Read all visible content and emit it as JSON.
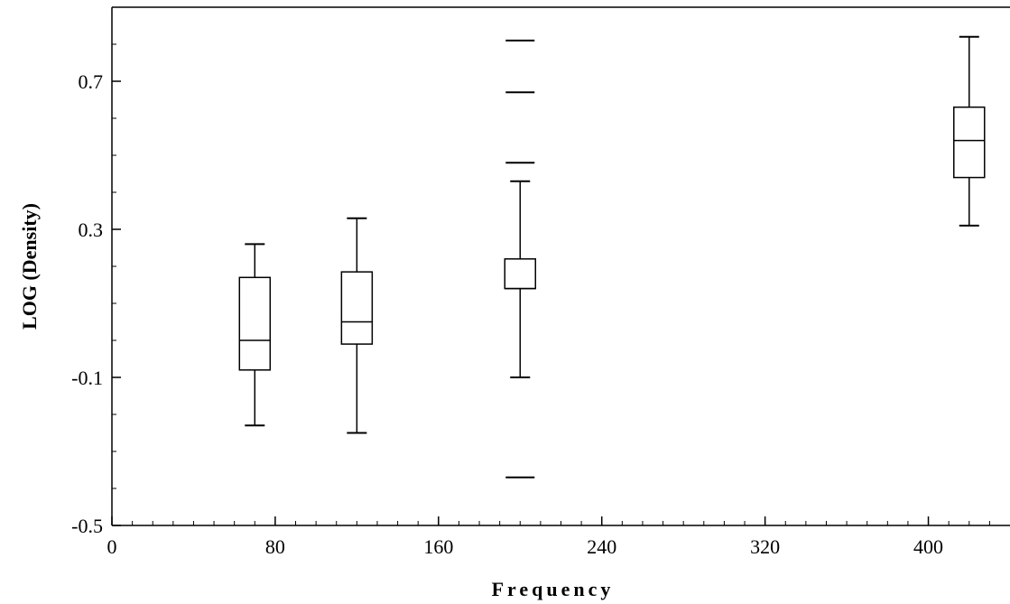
{
  "chart_data": {
    "type": "boxplot",
    "title": "",
    "xlabel": "Frequency",
    "ylabel": "LOG (Density)",
    "xlim": [
      0,
      440
    ],
    "ylim": [
      -0.5,
      0.9
    ],
    "x_ticks": [
      {
        "value": 0,
        "label": "0"
      },
      {
        "value": 80,
        "label": "80"
      },
      {
        "value": 160,
        "label": "160"
      },
      {
        "value": 240,
        "label": "240"
      },
      {
        "value": 320,
        "label": "320"
      },
      {
        "value": 400,
        "label": "400"
      }
    ],
    "y_ticks": [
      {
        "value": -0.5,
        "label": "-0.5"
      },
      {
        "value": -0.1,
        "label": "-0.1"
      },
      {
        "value": 0.3,
        "label": "0.3"
      },
      {
        "value": 0.7,
        "label": "0.7"
      }
    ],
    "x_minor_step": 10,
    "y_minor_step": 0.1,
    "grid": false,
    "boxes": [
      {
        "x": 70,
        "whisker_low": -0.23,
        "q1": -0.08,
        "median": 0.0,
        "q3": 0.17,
        "whisker_high": 0.26,
        "outliers": []
      },
      {
        "x": 120,
        "whisker_low": -0.25,
        "q1": -0.01,
        "median": 0.05,
        "q3": 0.185,
        "whisker_high": 0.33,
        "outliers": []
      },
      {
        "x": 200,
        "whisker_low": -0.1,
        "q1": 0.14,
        "median": 0.14,
        "q3": 0.22,
        "whisker_high": 0.43,
        "outliers": [
          -0.37,
          0.48,
          0.67,
          0.81
        ]
      },
      {
        "x": 420,
        "whisker_low": 0.31,
        "q1": 0.44,
        "median": 0.54,
        "q3": 0.63,
        "whisker_high": 0.82,
        "outliers": []
      }
    ]
  }
}
